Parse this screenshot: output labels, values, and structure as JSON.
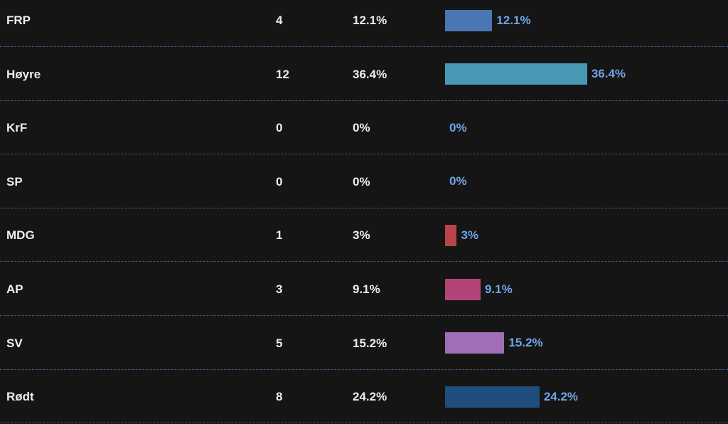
{
  "rows": [
    {
      "party": "FRP",
      "seats": "4",
      "percent_text": "12.1%",
      "percent": 12.1,
      "color": "#4a76b5"
    },
    {
      "party": "Høyre",
      "seats": "12",
      "percent_text": "36.4%",
      "percent": 36.4,
      "color": "#4899b3"
    },
    {
      "party": "KrF",
      "seats": "0",
      "percent_text": "0%",
      "percent": 0,
      "color": "#e8c847"
    },
    {
      "party": "SP",
      "seats": "0",
      "percent_text": "0%",
      "percent": 0,
      "color": "#3f9a4c"
    },
    {
      "party": "MDG",
      "seats": "1",
      "percent_text": "3%",
      "percent": 3,
      "color": "#b9454a"
    },
    {
      "party": "AP",
      "seats": "3",
      "percent_text": "9.1%",
      "percent": 9.1,
      "color": "#b34478"
    },
    {
      "party": "SV",
      "seats": "5",
      "percent_text": "15.2%",
      "percent": 15.2,
      "color": "#a06eb5"
    },
    {
      "party": "Rødt",
      "seats": "8",
      "percent_text": "24.2%",
      "percent": 24.2,
      "color": "#1f4e7e"
    }
  ]
}
